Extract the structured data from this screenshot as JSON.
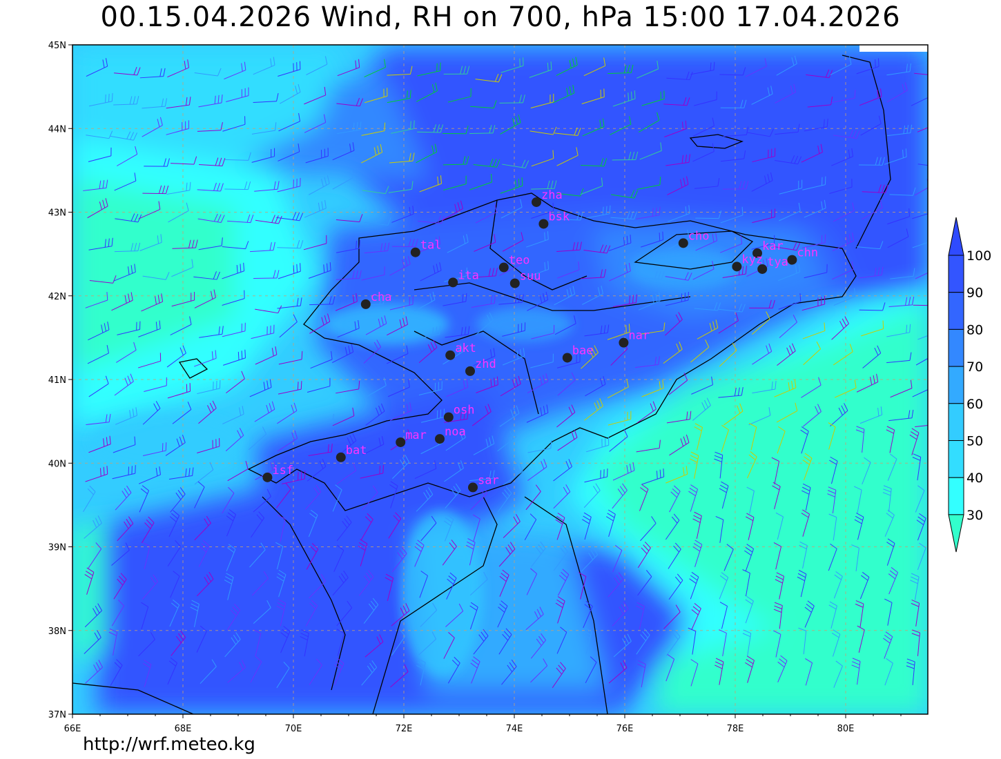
{
  "title": "00.15.04.2026 Wind, RH on 700, hPa 15:00 17.04.2026",
  "footer_url": "http://wrf.meteo.kg",
  "map": {
    "lon_range": [
      66,
      81.5
    ],
    "lat_range": [
      37,
      45
    ],
    "lon_ticks": [
      "66E",
      "68E",
      "70E",
      "72E",
      "74E",
      "76E",
      "78E",
      "80E"
    ],
    "lat_ticks": [
      "37N",
      "38N",
      "39N",
      "40N",
      "41N",
      "42N",
      "43N",
      "44N",
      "45N"
    ],
    "stations": [
      {
        "name": "zha",
        "lon": 74.4,
        "lat": 43.12
      },
      {
        "name": "bsk",
        "lon": 74.53,
        "lat": 42.86
      },
      {
        "name": "tal",
        "lon": 72.21,
        "lat": 42.52
      },
      {
        "name": "teo",
        "lon": 73.81,
        "lat": 42.34
      },
      {
        "name": "ita",
        "lon": 72.89,
        "lat": 42.16
      },
      {
        "name": "suu",
        "lon": 74.01,
        "lat": 42.15
      },
      {
        "name": "cha",
        "lon": 71.31,
        "lat": 41.9
      },
      {
        "name": "cho",
        "lon": 77.06,
        "lat": 42.63
      },
      {
        "name": "kar",
        "lon": 78.4,
        "lat": 42.51
      },
      {
        "name": "kyz",
        "lon": 78.03,
        "lat": 42.35
      },
      {
        "name": "tya",
        "lon": 78.49,
        "lat": 42.32
      },
      {
        "name": "chn",
        "lon": 79.03,
        "lat": 42.43
      },
      {
        "name": "nar",
        "lon": 75.98,
        "lat": 41.44
      },
      {
        "name": "bae",
        "lon": 74.96,
        "lat": 41.26
      },
      {
        "name": "akt",
        "lon": 72.84,
        "lat": 41.29
      },
      {
        "name": "zhd",
        "lon": 73.2,
        "lat": 41.1
      },
      {
        "name": "osh",
        "lon": 72.81,
        "lat": 40.55
      },
      {
        "name": "noa",
        "lon": 72.65,
        "lat": 40.29
      },
      {
        "name": "mar",
        "lon": 71.94,
        "lat": 40.25
      },
      {
        "name": "bat",
        "lon": 70.86,
        "lat": 40.07
      },
      {
        "name": "isf",
        "lon": 69.53,
        "lat": 39.83
      },
      {
        "name": "sar",
        "lon": 73.25,
        "lat": 39.71
      }
    ]
  },
  "colorbar": {
    "labels": [
      "100",
      "90",
      "80",
      "70",
      "60",
      "50",
      "40",
      "30"
    ],
    "colors": {
      "above_100": "#2f4bff",
      "90-100": "#3355ff",
      "80-90": "#3366ff",
      "70-80": "#3388ff",
      "60-70": "#33aaff",
      "50-60": "#33ccff",
      "40-50": "#33ddff",
      "30-40": "#33ffff",
      "below_30": "#33ffcc"
    }
  }
}
